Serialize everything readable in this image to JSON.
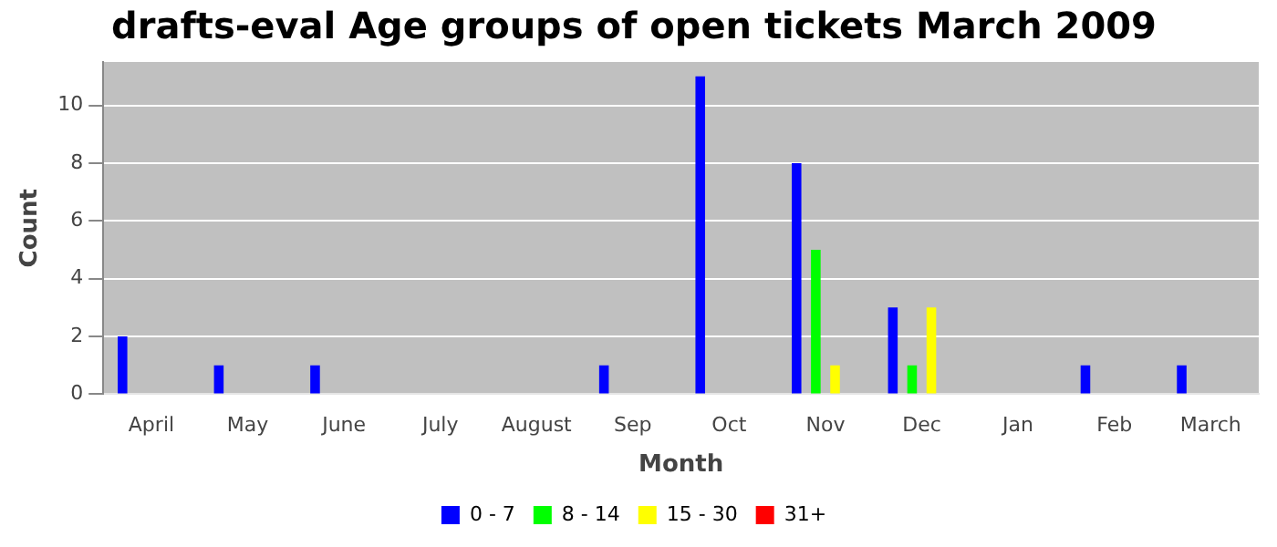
{
  "chart_data": {
    "type": "bar",
    "title": "drafts-eval Age groups of open tickets March 2009",
    "xlabel": "Month",
    "ylabel": "Count",
    "categories": [
      "April",
      "May",
      "June",
      "July",
      "August",
      "Sep",
      "Oct",
      "Nov",
      "Dec",
      "Jan",
      "Feb",
      "March"
    ],
    "series": [
      {
        "name": "0 - 7",
        "color": "#0000ff",
        "values": [
          2,
          1,
          1,
          0,
          0,
          1,
          11,
          8,
          3,
          0,
          1,
          1
        ]
      },
      {
        "name": "8 - 14",
        "color": "#00ff00",
        "values": [
          0,
          0,
          0,
          0,
          0,
          0,
          0,
          5,
          1,
          0,
          0,
          0
        ]
      },
      {
        "name": "15 - 30",
        "color": "#ffff00",
        "values": [
          0,
          0,
          0,
          0,
          0,
          0,
          0,
          1,
          3,
          0,
          0,
          0
        ]
      },
      {
        "name": "31+",
        "color": "#ff0000",
        "values": [
          0,
          0,
          0,
          0,
          0,
          0,
          0,
          0,
          0,
          0,
          0,
          0
        ]
      }
    ],
    "ylim": [
      0,
      11.5
    ],
    "yticks": [
      0,
      2,
      4,
      6,
      8,
      10
    ],
    "grid": "y",
    "legend": "bottom"
  }
}
